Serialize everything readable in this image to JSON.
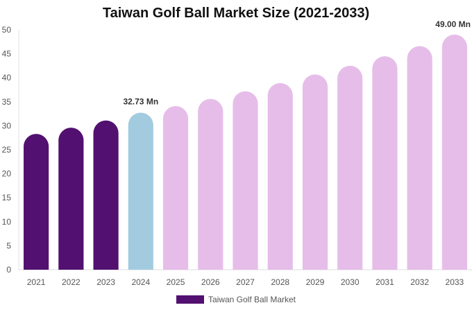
{
  "chart_data": {
    "type": "bar",
    "title": "Taiwan Golf Ball Market Size (2021-2033)",
    "xlabel": "",
    "ylabel": "",
    "ylim": [
      0,
      50
    ],
    "yticks": [
      0,
      5,
      10,
      15,
      20,
      25,
      30,
      35,
      40,
      45,
      50
    ],
    "grid": false,
    "legend_position": "bottom",
    "categories": [
      "2021",
      "2022",
      "2023",
      "2024",
      "2025",
      "2026",
      "2027",
      "2028",
      "2029",
      "2030",
      "2031",
      "2032",
      "2033"
    ],
    "series": [
      {
        "name": "Taiwan Golf Ball Market",
        "values": [
          28.3,
          29.6,
          31.1,
          32.73,
          34.1,
          35.6,
          37.2,
          38.9,
          40.7,
          42.5,
          44.5,
          46.6,
          49.0
        ]
      }
    ],
    "bar_colors": [
      "#521070",
      "#521070",
      "#521070",
      "#a3cbe0",
      "#e6bde9",
      "#e6bde9",
      "#e6bde9",
      "#e6bde9",
      "#e6bde9",
      "#e6bde9",
      "#e6bde9",
      "#e6bde9",
      "#e6bde9"
    ],
    "data_labels": [
      {
        "category": "2024",
        "text": "32.73 Mn"
      },
      {
        "category": "2033",
        "text": "49.00 Mn"
      }
    ],
    "legend": {
      "label": "Taiwan Golf Ball Market",
      "color": "#521070"
    }
  }
}
